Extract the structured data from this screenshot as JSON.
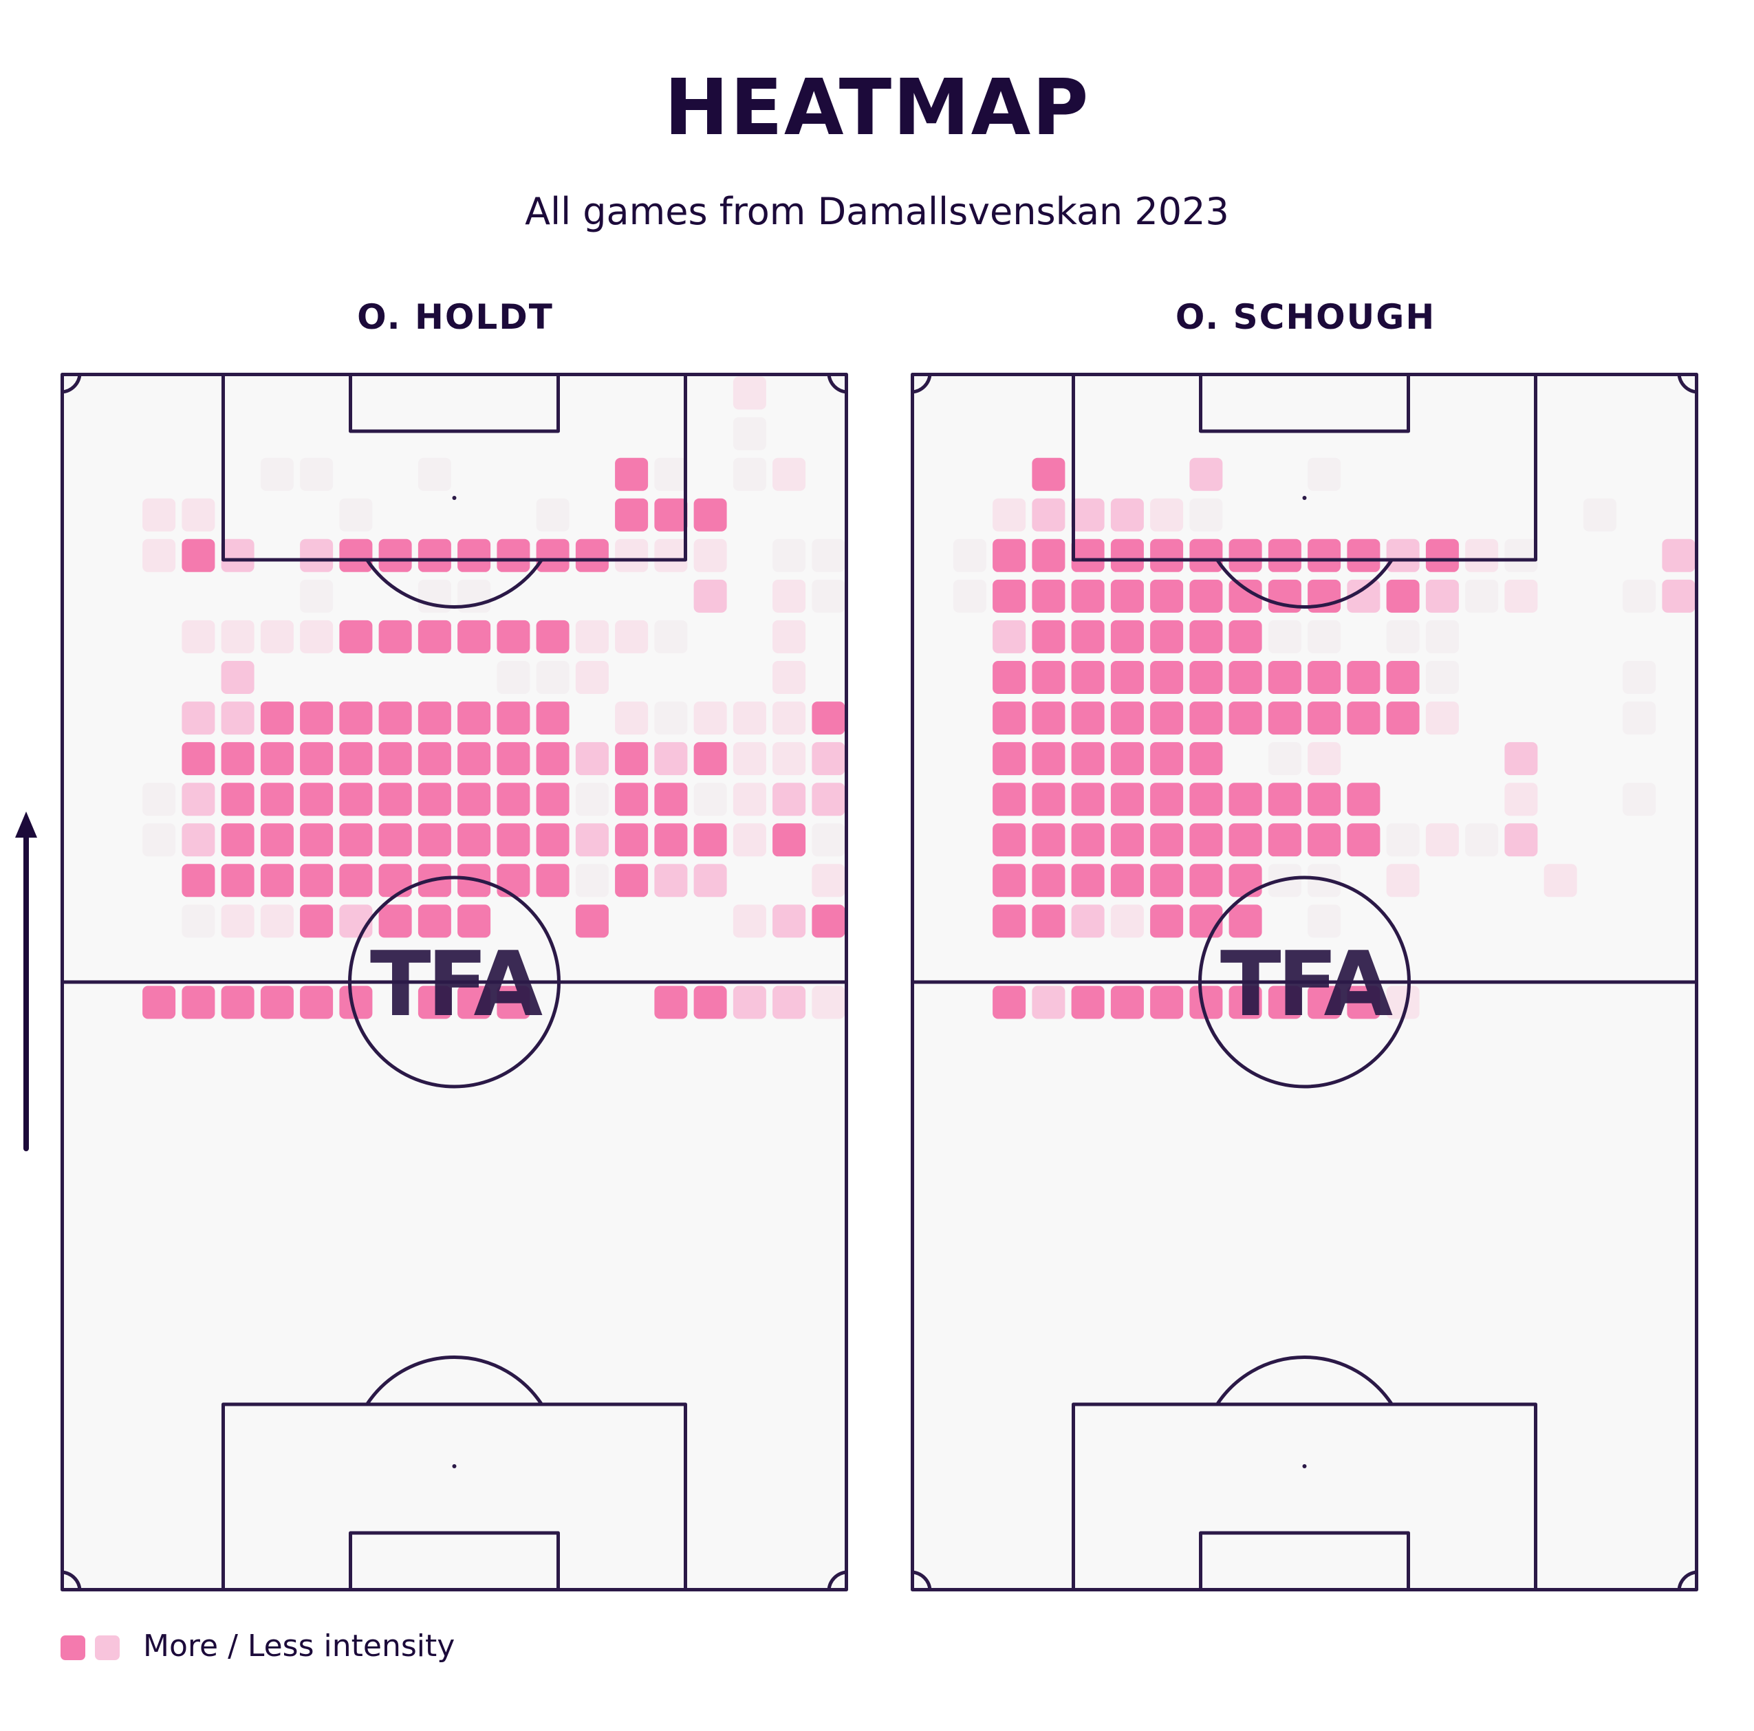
{
  "title": "HEATMAP",
  "subtitle": "All games from Damallsvenskan 2023",
  "watermark": "TFA",
  "legend": {
    "label": "More / Less intensity",
    "more_color": "#f47aae",
    "less_color": "#f8c4dc"
  },
  "colors": {
    "line": "#2b1947",
    "pitch_background": "#f8f8f8",
    "intensity_scale": [
      "#f8f8f8",
      "#f4f0f2",
      "#f8e4ec",
      "#f8c4dc",
      "#f47aae"
    ]
  },
  "chart_data": [
    {
      "type": "heatmap",
      "player": "O. HOLDT",
      "grid": "20 columns x 30 rows, top row = attacking end; values 0 (none) to 4 (most intense)",
      "rows": [
        "00000000000000000200",
        "00000000000000000100",
        "00000110010000410120",
        "00220001000010444000",
        "00243034444444222011",
        "00000010011000003021",
        "00022224444442210020",
        "00003000000112000020",
        "00033444444440212224",
        "00044444444443434223",
        "00134444444441441233",
        "00134444444443444241",
        "00044444444441433002",
        "00012243444004000234",
        "00000000000000000000",
        "00444444044400044332",
        "00000000000000000000",
        "00000000000000000000",
        "00000000000000000000",
        "00000000000000000000",
        "00000000000000000000",
        "00000000000000000000",
        "00000000000000000000",
        "00000000000000000000",
        "00000000000000000000",
        "00000000000000000000",
        "00000000000000000000",
        "00000000000000000000",
        "00000000000000000000",
        "00000000000000000000"
      ]
    },
    {
      "type": "heatmap",
      "player": "O. SCHOUGH",
      "grid": "20 columns x 30 rows, top row = attacking end; values 0 (none) to 4 (most intense)",
      "rows": [
        "00000000000000000000",
        "00000000000000000000",
        "00040003001000000000",
        "00233321000000000100",
        "01444444444434210003",
        "01444444444343120013",
        "00344444411011000000",
        "00444444444441000010",
        "00444444444442000010",
        "00444444012000030000",
        "00444444444400020010",
        "00444444444412130000",
        "00444444411020002000",
        "00443244401000000000",
        "00000000000000000000",
        "00434444444420000000",
        "00000000000000000000",
        "00000000000000000000",
        "00000000000000000000",
        "00000000000000000000",
        "00000000000000000000",
        "00000000000000000000",
        "00000000000000000000",
        "00000000000000000000",
        "00000000000000000000",
        "00000000000000000000",
        "00000000000000000000",
        "00000000000000000000",
        "00000000000000000000",
        "00000000000000000000"
      ]
    }
  ]
}
